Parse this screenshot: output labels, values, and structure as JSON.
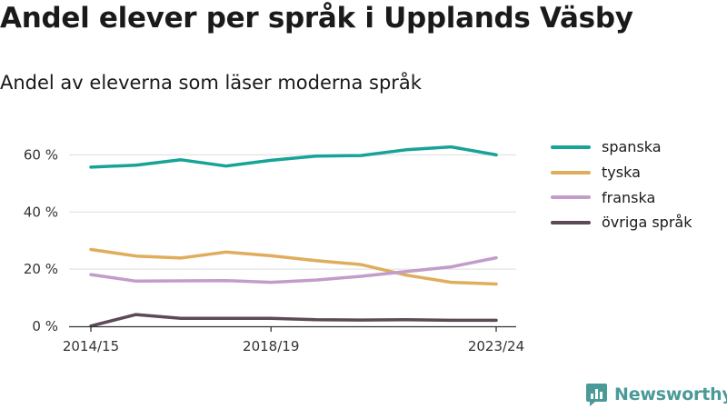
{
  "title": "Andel elever per språk i Upplands Väsby",
  "subtitle": "Andel av eleverna som läser moderna språk",
  "brand": {
    "name": "Newsworthy",
    "color": "#4a9a98"
  },
  "chart_data": {
    "type": "line",
    "title": "Andel elever per språk i Upplands Väsby",
    "subtitle": "Andel av eleverna som läser moderna språk",
    "x": [
      "2014/15",
      "2015/16",
      "2016/17",
      "2017/18",
      "2018/19",
      "2019/20",
      "2020/21",
      "2021/22",
      "2022/23",
      "2023/24"
    ],
    "x_tick_labels": [
      "2014/15",
      "2018/19",
      "2023/24"
    ],
    "ylim": [
      0,
      70
    ],
    "y_ticks": [
      0,
      20,
      40,
      60
    ],
    "y_tick_labels": [
      "0 %",
      "20 %",
      "40 %",
      "60 %"
    ],
    "y_unit": "%",
    "grid": true,
    "legend_position": "right",
    "series": [
      {
        "name": "spanska",
        "color": "#17a398",
        "values": [
          55.7,
          56.4,
          58.3,
          56.1,
          58.1,
          59.6,
          59.8,
          61.8,
          62.8,
          60.0
        ]
      },
      {
        "name": "tyska",
        "color": "#dfad5c",
        "values": [
          26.9,
          24.6,
          23.9,
          26.0,
          24.7,
          23.0,
          21.6,
          17.9,
          15.4,
          14.8
        ]
      },
      {
        "name": "franska",
        "color": "#c39ccb",
        "values": [
          18.1,
          15.8,
          15.9,
          16.0,
          15.4,
          16.2,
          17.5,
          19.2,
          20.8,
          24.0
        ]
      },
      {
        "name": "övriga språk",
        "color": "#5c4a56",
        "values": [
          0.1,
          4.1,
          2.8,
          2.8,
          2.8,
          2.3,
          2.2,
          2.3,
          2.1,
          2.1
        ]
      }
    ]
  }
}
